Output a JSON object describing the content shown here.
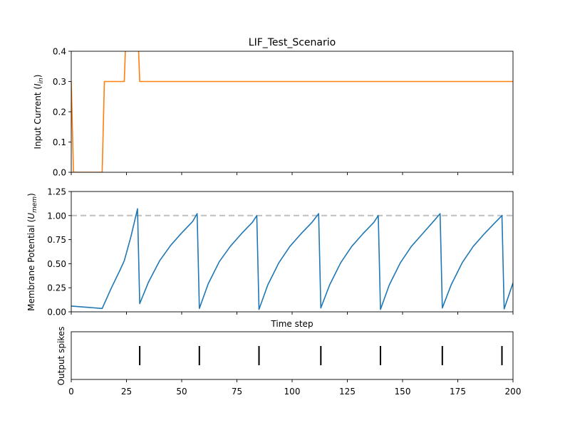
{
  "chart_data": [
    {
      "type": "line",
      "title": "LIF_Test_Scenario",
      "ylabel": "Input Current (",
      "ylabel_sym": "I",
      "ylabel_sub": "in",
      "ylabel_end": ")",
      "xlim": [
        0,
        200
      ],
      "ylim": [
        0,
        0.4
      ],
      "yticks": [
        "0.0",
        "0.1",
        "0.2",
        "0.3",
        "0.4"
      ],
      "ytick_values": [
        0,
        0.1,
        0.2,
        0.3,
        0.4
      ],
      "color": "#ff7f0e",
      "series": [
        {
          "x": [
            0,
            1,
            14,
            15,
            24,
            25,
            30,
            31,
            200
          ],
          "y": [
            0.3,
            0,
            0,
            0.3,
            0.3,
            0.5,
            0.5,
            0.3,
            0.3
          ]
        }
      ]
    },
    {
      "type": "line",
      "ylabel": "Membrane Potential (",
      "ylabel_sym": "U",
      "ylabel_sub": "mem",
      "ylabel_end": ")",
      "xlabel": "Time step",
      "xlim": [
        0,
        200
      ],
      "ylim": [
        0,
        1.25
      ],
      "yticks": [
        "0.00",
        "0.25",
        "0.50",
        "0.75",
        "1.00",
        "1.25"
      ],
      "ytick_values": [
        0,
        0.25,
        0.5,
        0.75,
        1.0,
        1.25
      ],
      "threshold": 1.0,
      "threshold_color": "#bfbfbf",
      "color": "#1f77b4",
      "series": [
        {
          "x": [
            0,
            14,
            18,
            22,
            24,
            27,
            30,
            31,
            35,
            40,
            45,
            50,
            55,
            57,
            58,
            62,
            67,
            72,
            77,
            82,
            84,
            85,
            89,
            94,
            99,
            104,
            109,
            112,
            113,
            117,
            122,
            127,
            132,
            137,
            139,
            140,
            144,
            149,
            154,
            159,
            164,
            167,
            168,
            172,
            177,
            182,
            187,
            192,
            195,
            196,
            200
          ],
          "y": [
            0.06,
            0.035,
            0.24,
            0.43,
            0.53,
            0.78,
            1.07,
            0.085,
            0.31,
            0.53,
            0.69,
            0.82,
            0.94,
            1.02,
            0.035,
            0.29,
            0.52,
            0.68,
            0.81,
            0.93,
            1.0,
            0.025,
            0.28,
            0.51,
            0.68,
            0.81,
            0.93,
            1.02,
            0.04,
            0.28,
            0.51,
            0.68,
            0.81,
            0.93,
            1.0,
            0.025,
            0.28,
            0.51,
            0.68,
            0.81,
            0.94,
            1.02,
            0.04,
            0.28,
            0.51,
            0.68,
            0.81,
            0.93,
            1.0,
            0.03,
            0.3
          ]
        }
      ]
    },
    {
      "type": "scatter",
      "ylabel": "Output spikes",
      "xlim": [
        0,
        200
      ],
      "xticks": [
        "0",
        "25",
        "50",
        "75",
        "100",
        "125",
        "150",
        "175",
        "200"
      ],
      "xtick_values": [
        0,
        25,
        50,
        75,
        100,
        125,
        150,
        175,
        200
      ],
      "marker": "vertical-line",
      "spike_times": [
        31,
        58,
        85,
        113,
        140,
        168,
        195
      ]
    }
  ]
}
